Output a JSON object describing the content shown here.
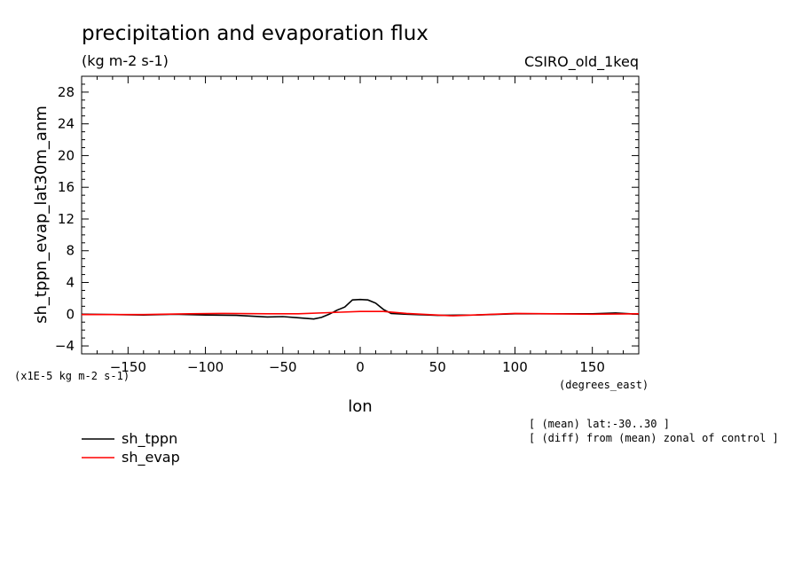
{
  "chart_data": {
    "type": "line",
    "title": "precipitation and evaporation flux",
    "units": "(kg m-2 s-1)",
    "model": "CSIRO_old_1keq",
    "xlabel": "lon",
    "x_units": "(degrees_east)",
    "ylabel": "sh_tppn_evap_lat30m_anm",
    "y_multiplier": "(x1E-5 kg m-2 s-1)",
    "xlim": [
      -180,
      180
    ],
    "ylim": [
      -5,
      30
    ],
    "x_ticks": [
      -150,
      -100,
      -50,
      0,
      50,
      100,
      150
    ],
    "y_ticks": [
      -4,
      0,
      4,
      8,
      12,
      16,
      20,
      24,
      28
    ],
    "grid": false,
    "notes": [
      "[ (mean) lat:-30..30 ]",
      "[ (diff) from (mean) zonal of control ]"
    ],
    "series": [
      {
        "name": "sh_tppn",
        "color": "#000000",
        "x": [
          -180,
          -160,
          -140,
          -120,
          -100,
          -80,
          -60,
          -50,
          -40,
          -30,
          -25,
          -20,
          -15,
          -10,
          -5,
          0,
          5,
          10,
          15,
          20,
          30,
          50,
          75,
          100,
          120,
          150,
          165,
          180
        ],
        "y": [
          0.0,
          -0.05,
          -0.1,
          0.0,
          -0.1,
          -0.15,
          -0.35,
          -0.3,
          -0.45,
          -0.6,
          -0.4,
          0.0,
          0.5,
          0.9,
          1.8,
          1.85,
          1.8,
          1.4,
          0.6,
          0.1,
          0.0,
          -0.15,
          -0.1,
          0.05,
          0.05,
          0.05,
          0.15,
          0.0
        ]
      },
      {
        "name": "sh_evap",
        "color": "#ff0000",
        "x": [
          -180,
          -140,
          -110,
          -90,
          -60,
          -40,
          -20,
          0,
          15,
          30,
          60,
          100,
          150,
          180
        ],
        "y": [
          -0.05,
          -0.05,
          0.05,
          0.1,
          0.05,
          0.05,
          0.2,
          0.35,
          0.35,
          0.1,
          -0.2,
          0.1,
          0.0,
          0.05
        ]
      }
    ]
  }
}
